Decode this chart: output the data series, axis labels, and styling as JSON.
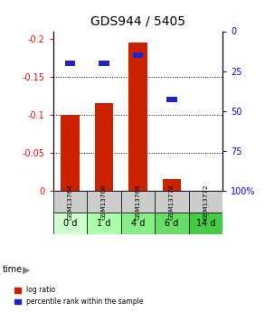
{
  "title": "GDS944 / 5405",
  "samples": [
    "GSM13764",
    "GSM13766",
    "GSM13768",
    "GSM13770",
    "GSM13772"
  ],
  "time_labels": [
    "0 d",
    "1 d",
    "4 d",
    "6 d",
    "14 d"
  ],
  "log_ratio": [
    -0.1,
    -0.115,
    -0.195,
    -0.015,
    0.0
  ],
  "percentile_rank": [
    20,
    20,
    15,
    43,
    0
  ],
  "ylim_left": [
    0.0,
    -0.21
  ],
  "ylim_right": [
    100,
    0
  ],
  "yticks_left": [
    0,
    -0.05,
    -0.1,
    -0.15,
    -0.2
  ],
  "yticks_right": [
    100,
    75,
    50,
    25,
    0
  ],
  "bar_color": "#cc2200",
  "percentile_color": "#2222cc",
  "title_fontsize": 10,
  "time_green_colors": [
    "#ccffcc",
    "#aaffaa",
    "#88ee88",
    "#66dd66",
    "#44cc44"
  ],
  "sample_bg_color": "#cccccc",
  "bar_width": 0.55
}
